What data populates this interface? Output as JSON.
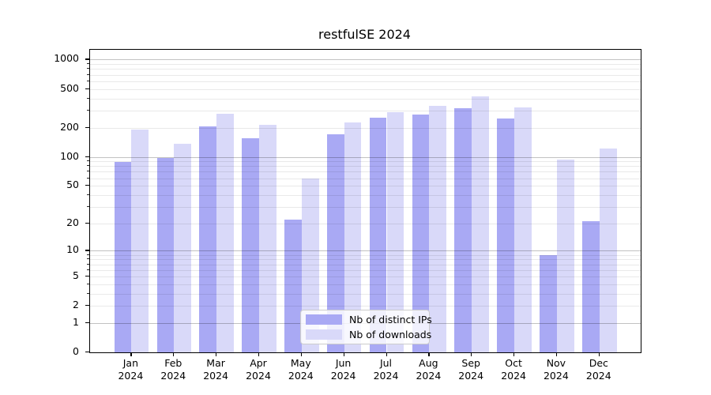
{
  "figure": {
    "title": "restfulSE 2024"
  },
  "chart_data": {
    "type": "bar",
    "title": "restfulSE 2024",
    "categories": [
      "Jan",
      "Feb",
      "Mar",
      "Apr",
      "May",
      "Jun",
      "Jul",
      "Aug",
      "Sep",
      "Oct",
      "Nov",
      "Dec"
    ],
    "category_year": "2024",
    "series": [
      {
        "name": "Nb of distinct IPs",
        "color": "#a9a9f4",
        "values": [
          88,
          97,
          206,
          155,
          22,
          170,
          255,
          275,
          315,
          250,
          9,
          21
        ]
      },
      {
        "name": "Nb of downloads",
        "color": "#d9d9f9",
        "values": [
          190,
          137,
          280,
          215,
          59,
          225,
          290,
          335,
          420,
          325,
          93,
          122
        ]
      }
    ],
    "xlabel": "",
    "ylabel": "",
    "y_scale": "log10(1+value)",
    "ylim": [
      0,
      1260
    ],
    "y_ticks": [
      0,
      1,
      2,
      5,
      10,
      20,
      50,
      100,
      200,
      500,
      1000
    ],
    "y_major_gridlines": [
      1,
      10,
      100,
      1000
    ],
    "y_minor_gridlines": [
      2,
      3,
      4,
      5,
      6,
      7,
      8,
      9,
      20,
      30,
      40,
      50,
      60,
      70,
      80,
      90,
      200,
      300,
      400,
      500,
      600,
      700,
      800,
      900
    ],
    "grid": "on",
    "legend": {
      "position": "lower center",
      "entries": [
        "Nb of distinct IPs",
        "Nb of downloads"
      ]
    }
  },
  "colors": {
    "bar_distinct_ips": "#a9a9f4",
    "bar_downloads": "#d9d9f9",
    "grid_major": "rgba(0,0,0,0.24)",
    "grid_minor": "rgba(0,0,0,0.085)",
    "spine": "#000000",
    "legend_border": "#cccccc"
  }
}
